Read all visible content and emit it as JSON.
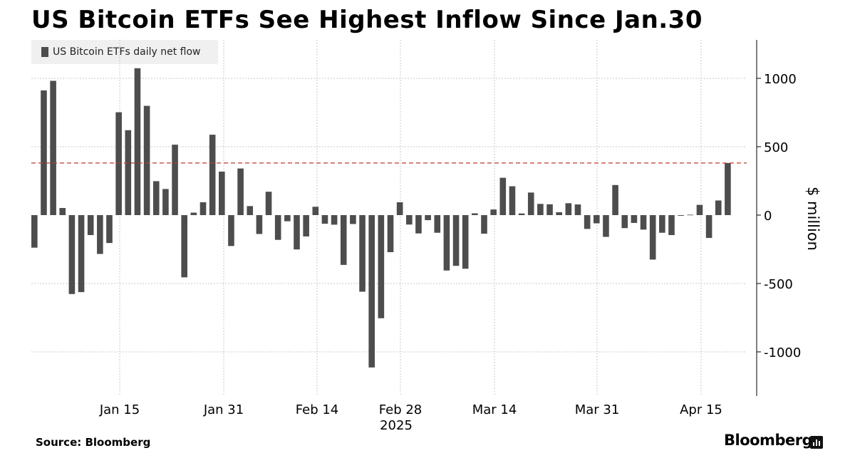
{
  "header": {
    "title": "US Bitcoin ETFs See Highest Inflow Since Jan.30"
  },
  "legend": {
    "label": "US Bitcoin ETFs daily net flow"
  },
  "footer": {
    "source": "Source: Bloomberg",
    "brand": "Bloomberg"
  },
  "colors": {
    "bar": "#4d4d4d",
    "reference_line": "#c0392b",
    "grid": "#c8c8c8"
  },
  "chart_data": {
    "type": "bar",
    "ylabel": "$ million",
    "xlabel": "",
    "year_label": "2025",
    "ylim": [
      -1250,
      1280
    ],
    "yticks": [
      1000,
      500,
      0,
      -500,
      -1000
    ],
    "xtick_labels": [
      "Jan 15",
      "Jan 31",
      "Feb 14",
      "Feb 28",
      "Mar 14",
      "Mar 31",
      "Apr 15"
    ],
    "grid": true,
    "legend_position": "top-left",
    "reference_line": 381,
    "values": [
      -238,
      912,
      982,
      52,
      -577,
      -563,
      -146,
      -284,
      -204,
      752,
      621,
      1074,
      799,
      248,
      191,
      515,
      -455,
      18,
      94,
      588,
      318,
      -226,
      341,
      66,
      -138,
      171,
      -181,
      -45,
      -251,
      -156,
      61,
      -63,
      -70,
      -364,
      -65,
      -560,
      -1114,
      -754,
      -271,
      94,
      -69,
      -134,
      -37,
      -129,
      -405,
      -371,
      -392,
      13,
      -136,
      41,
      273,
      211,
      12,
      165,
      82,
      79,
      21,
      87,
      78,
      -101,
      -60,
      -159,
      220,
      -95,
      -57,
      -106,
      -325,
      -129,
      -146,
      -5,
      3,
      75,
      -167,
      107,
      381
    ]
  }
}
